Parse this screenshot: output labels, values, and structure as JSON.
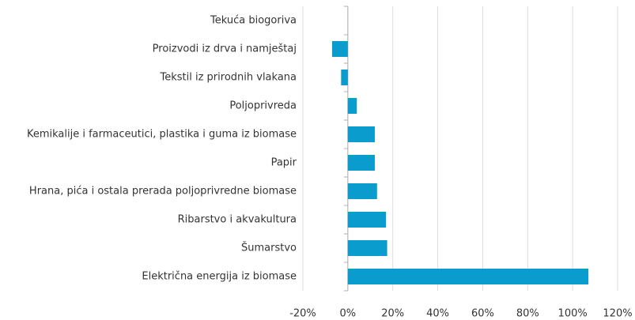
{
  "chart_data": {
    "type": "bar",
    "orientation": "horizontal",
    "categories": [
      "Tekuća biogoriva",
      "Proizvodi iz drva i namještaj",
      "Tekstil iz prirodnih vlakana",
      "Poljoprivreda",
      "Kemikalije i farmaceutici, plastika i guma iz biomase",
      "Papir",
      "Hrana, pića i ostala prerada poljoprivredne biomase",
      "Ribarstvo i akvakultura",
      "Šumarstvo",
      "Električna energija iz biomase"
    ],
    "values": [
      0,
      -7,
      -3,
      4,
      12,
      12,
      13,
      17,
      17.5,
      107
    ],
    "color": "#0a9ccc",
    "xlim": [
      -20,
      120
    ],
    "xticks": [
      {
        "value": -20,
        "label": "-20%"
      },
      {
        "value": 0,
        "label": "0%"
      },
      {
        "value": 20,
        "label": "20%"
      },
      {
        "value": 40,
        "label": "40%"
      },
      {
        "value": 60,
        "label": "60%"
      },
      {
        "value": 80,
        "label": "80%"
      },
      {
        "value": 100,
        "label": "100%"
      },
      {
        "value": 120,
        "label": "120%"
      }
    ],
    "grid": true
  }
}
